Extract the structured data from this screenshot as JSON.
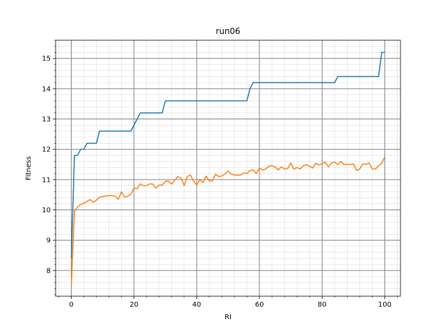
{
  "chart_data": {
    "type": "line",
    "title": "run06",
    "xlabel": "RI",
    "ylabel": "Fitness",
    "xlim": [
      -5,
      105
    ],
    "ylim": [
      7.15,
      15.6
    ],
    "xticks": [
      0,
      20,
      40,
      60,
      80,
      100
    ],
    "yticks": [
      8,
      9,
      10,
      11,
      12,
      13,
      14,
      15
    ],
    "grid": true,
    "minor_grid": true,
    "series": [
      {
        "color": "#1f77b4",
        "x": [
          0,
          1,
          2,
          3,
          4,
          5,
          6,
          7,
          8,
          9,
          10,
          11,
          12,
          13,
          14,
          15,
          16,
          17,
          18,
          19,
          20,
          21,
          22,
          23,
          24,
          25,
          26,
          27,
          28,
          29,
          30,
          31,
          32,
          33,
          34,
          35,
          36,
          37,
          38,
          39,
          40,
          41,
          42,
          43,
          44,
          45,
          46,
          47,
          48,
          49,
          50,
          51,
          52,
          53,
          54,
          55,
          56,
          57,
          58,
          59,
          60,
          61,
          62,
          63,
          64,
          65,
          66,
          67,
          68,
          69,
          70,
          71,
          72,
          73,
          74,
          75,
          76,
          77,
          78,
          79,
          80,
          81,
          82,
          83,
          84,
          85,
          86,
          87,
          88,
          89,
          90,
          91,
          92,
          93,
          94,
          95,
          96,
          97,
          98,
          99,
          100
        ],
        "y": [
          8.4,
          11.8,
          11.8,
          12.0,
          12.0,
          12.2,
          12.2,
          12.2,
          12.2,
          12.6,
          12.6,
          12.6,
          12.6,
          12.6,
          12.6,
          12.6,
          12.6,
          12.6,
          12.6,
          12.6,
          12.8,
          13.0,
          13.2,
          13.2,
          13.2,
          13.2,
          13.2,
          13.2,
          13.2,
          13.2,
          13.6,
          13.6,
          13.6,
          13.6,
          13.6,
          13.6,
          13.6,
          13.6,
          13.6,
          13.6,
          13.6,
          13.6,
          13.6,
          13.6,
          13.6,
          13.6,
          13.6,
          13.6,
          13.6,
          13.6,
          13.6,
          13.6,
          13.6,
          13.6,
          13.6,
          13.6,
          13.6,
          14.0,
          14.2,
          14.2,
          14.2,
          14.2,
          14.2,
          14.2,
          14.2,
          14.2,
          14.2,
          14.2,
          14.2,
          14.2,
          14.2,
          14.2,
          14.2,
          14.2,
          14.2,
          14.2,
          14.2,
          14.2,
          14.2,
          14.2,
          14.2,
          14.2,
          14.2,
          14.2,
          14.2,
          14.4,
          14.4,
          14.4,
          14.4,
          14.4,
          14.4,
          14.4,
          14.4,
          14.4,
          14.4,
          14.4,
          14.4,
          14.4,
          14.4,
          15.2,
          15.2
        ]
      },
      {
        "color": "#ff7f0e",
        "x": [
          0,
          1,
          2,
          3,
          4,
          5,
          6,
          7,
          8,
          9,
          10,
          11,
          12,
          13,
          14,
          15,
          16,
          17,
          18,
          19,
          20,
          21,
          22,
          23,
          24,
          25,
          26,
          27,
          28,
          29,
          30,
          31,
          32,
          33,
          34,
          35,
          36,
          37,
          38,
          39,
          40,
          41,
          42,
          43,
          44,
          45,
          46,
          47,
          48,
          49,
          50,
          51,
          52,
          53,
          54,
          55,
          56,
          57,
          58,
          59,
          60,
          61,
          62,
          63,
          64,
          65,
          66,
          67,
          68,
          69,
          70,
          71,
          72,
          73,
          74,
          75,
          76,
          77,
          78,
          79,
          80,
          81,
          82,
          83,
          84,
          85,
          86,
          87,
          88,
          89,
          90,
          91,
          92,
          93,
          94,
          95,
          96,
          97,
          98,
          99,
          100
        ],
        "y": [
          7.5,
          9.95,
          10.1,
          10.18,
          10.22,
          10.28,
          10.34,
          10.25,
          10.32,
          10.42,
          10.44,
          10.46,
          10.47,
          10.47,
          10.45,
          10.35,
          10.6,
          10.42,
          10.45,
          10.52,
          10.72,
          10.7,
          10.86,
          10.8,
          10.8,
          10.86,
          10.85,
          10.72,
          10.82,
          10.82,
          10.94,
          10.95,
          10.85,
          10.98,
          11.1,
          11.05,
          10.8,
          11.1,
          11.15,
          10.95,
          10.82,
          11.0,
          10.9,
          11.12,
          10.95,
          10.96,
          11.18,
          11.1,
          11.12,
          11.18,
          11.28,
          11.18,
          11.15,
          11.15,
          11.15,
          11.22,
          11.2,
          11.3,
          11.32,
          11.2,
          11.38,
          11.32,
          11.35,
          11.44,
          11.46,
          11.42,
          11.32,
          11.42,
          11.35,
          11.36,
          11.55,
          11.34,
          11.4,
          11.35,
          11.46,
          11.49,
          11.44,
          11.38,
          11.54,
          11.48,
          11.52,
          11.58,
          11.42,
          11.55,
          11.58,
          11.5,
          11.6,
          11.5,
          11.5,
          11.5,
          11.52,
          11.3,
          11.35,
          11.52,
          11.5,
          11.55,
          11.35,
          11.35,
          11.45,
          11.55,
          11.75
        ]
      }
    ]
  }
}
